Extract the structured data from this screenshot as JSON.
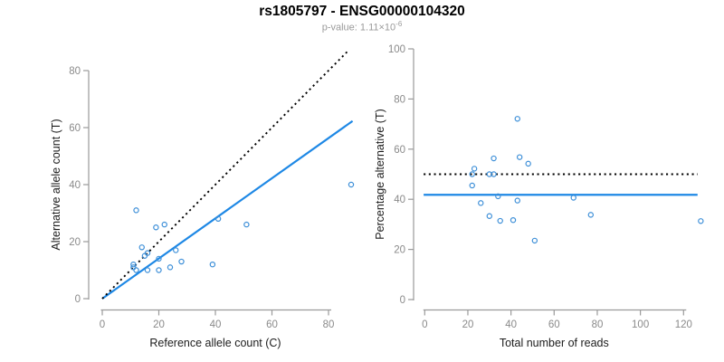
{
  "header": {
    "title": "rs1805797 - ENSG00000104320",
    "pvalue_prefix": "p-value: 1.11×10",
    "pvalue_exponent": "-6"
  },
  "colors": {
    "accent_blue": "#1e88e5",
    "point_blue": "#3d8fd8",
    "tick_label_gray": "#8a8a8a",
    "axis_gray": "#9a9a9a",
    "axis_title_dark": "#1c1c1c"
  },
  "chart_data": [
    {
      "type": "scatter",
      "name": "left-scatter-plot",
      "xlabel": "Reference allele count (C)",
      "ylabel": "Alternative allele count (T)",
      "xlim": [
        0,
        80
      ],
      "ylim": [
        0,
        80
      ],
      "xticks": [
        0,
        20,
        40,
        60,
        80
      ],
      "yticks": [
        0,
        20,
        40,
        60,
        80
      ],
      "grid": false,
      "legend": "none",
      "points": [
        [
          12,
          31
        ],
        [
          19,
          25
        ],
        [
          22,
          26
        ],
        [
          14,
          18
        ],
        [
          15,
          15
        ],
        [
          16,
          16
        ],
        [
          26,
          17
        ],
        [
          11,
          11
        ],
        [
          11,
          12
        ],
        [
          12,
          10
        ],
        [
          16,
          10
        ],
        [
          20,
          10
        ],
        [
          20,
          14
        ],
        [
          24,
          11
        ],
        [
          28,
          13
        ],
        [
          39,
          12
        ],
        [
          41,
          28
        ],
        [
          51,
          26
        ],
        [
          88,
          40
        ]
      ],
      "lines": [
        {
          "name": "fit-line",
          "style": "solid",
          "color": "#1e88e5",
          "x": [
            0,
            88.5
          ],
          "y": [
            0,
            62.3
          ]
        },
        {
          "name": "identity-line",
          "style": "dotted",
          "color": "#000000",
          "x": [
            0,
            87
          ],
          "y": [
            0,
            87
          ]
        }
      ]
    },
    {
      "type": "scatter",
      "name": "right-scatter-plot",
      "xlabel": "Total number of reads",
      "ylabel": "Percentage alternative (T)",
      "xlim": [
        0,
        120
      ],
      "ylim": [
        0,
        100
      ],
      "xticks": [
        0,
        20,
        40,
        60,
        80,
        100,
        120
      ],
      "yticks": [
        0,
        20,
        40,
        60,
        80,
        100
      ],
      "grid": false,
      "legend": "none",
      "points": [
        [
          43,
          72.1
        ],
        [
          44,
          56.8
        ],
        [
          48,
          54.2
        ],
        [
          32,
          56.3
        ],
        [
          30,
          50
        ],
        [
          32,
          50
        ],
        [
          43,
          39.5
        ],
        [
          22,
          50
        ],
        [
          23,
          52.2
        ],
        [
          22,
          45.5
        ],
        [
          26,
          38.5
        ],
        [
          30,
          33.3
        ],
        [
          34,
          41.2
        ],
        [
          35,
          31.4
        ],
        [
          41,
          31.7
        ],
        [
          51,
          23.5
        ],
        [
          69,
          40.6
        ],
        [
          77,
          33.8
        ],
        [
          128,
          31.3
        ]
      ],
      "lines": [
        {
          "name": "fit-line",
          "style": "solid",
          "color": "#1e88e5",
          "x": [
            -0.5,
            126.5
          ],
          "y": [
            41.8,
            41.8
          ]
        },
        {
          "name": "fifty-percent-line",
          "style": "dotted",
          "color": "#000000",
          "x": [
            -0.5,
            126.5
          ],
          "y": [
            50,
            50
          ]
        }
      ]
    }
  ]
}
